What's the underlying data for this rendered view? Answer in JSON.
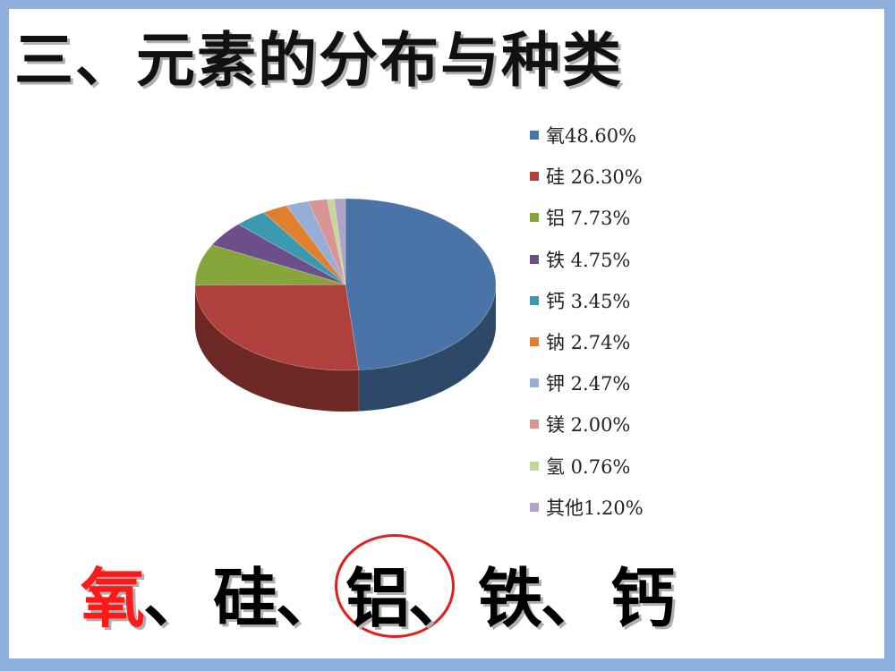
{
  "title": "三、元素的分布与种类",
  "chart_data": {
    "type": "pie",
    "title": "",
    "categories": [
      "氧",
      "硅",
      "铝",
      "铁",
      "钙",
      "钠",
      "钾",
      "镁",
      "氢",
      "其他"
    ],
    "values": [
      48.6,
      26.3,
      7.73,
      4.75,
      3.45,
      2.74,
      2.47,
      2.0,
      0.76,
      1.2
    ],
    "legend_labels": [
      "氧48.60%",
      "硅 26.30%",
      "铝 7.73%",
      "铁 4.75%",
      "钙 3.45%",
      "钠 2.74%",
      "钾 2.47%",
      "镁 2.00%",
      "氢 0.76%",
      "其他1.20%"
    ],
    "colors": [
      "#4a74a8",
      "#b0403e",
      "#86a53b",
      "#6c4f8a",
      "#3a9bb0",
      "#e07f2e",
      "#94aed8",
      "#d99594",
      "#c3d79b",
      "#b3a2c7"
    ],
    "legend_position": "right",
    "style": "3d"
  },
  "summary": {
    "items": [
      "氧",
      "硅",
      "铝",
      "铁",
      "钙"
    ],
    "separator": "、",
    "highlight_color": "#ff1a1a",
    "circle_color": "#e02020"
  }
}
